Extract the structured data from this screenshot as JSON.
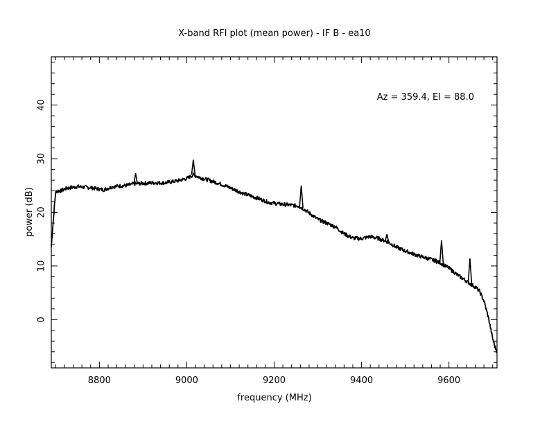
{
  "chart_data": {
    "type": "line",
    "title": "X-band RFI plot (mean power) - IF B - ea10",
    "xlabel": "frequency (MHz)",
    "ylabel": "power (dB)",
    "annotation": "Az = 359.4, El = 88.0",
    "xlim": [
      8690,
      9710
    ],
    "ylim": [
      -9,
      49
    ],
    "x_ticks": [
      8800,
      9000,
      9200,
      9400,
      9600
    ],
    "y_ticks": [
      0,
      10,
      20,
      30,
      40
    ],
    "grid": false,
    "color": "#000000",
    "series": [
      {
        "x": [
          8690,
          8693,
          8697,
          8700,
          8705,
          8712,
          8725,
          8750,
          8780,
          8810,
          8830,
          8860,
          8880,
          8895,
          8920,
          8950,
          8980,
          9000,
          9015,
          9030,
          9050,
          9070,
          9090,
          9110,
          9130,
          9160,
          9190,
          9220,
          9255,
          9270,
          9285,
          9300,
          9320,
          9340,
          9360,
          9380,
          9400,
          9420,
          9440,
          9460,
          9480,
          9500,
          9530,
          9560,
          9580,
          9600,
          9620,
          9640,
          9650,
          9660,
          9670,
          9680,
          9690,
          9695,
          9700,
          9705,
          9710
        ],
        "y": [
          13.5,
          17,
          21,
          23.8,
          24,
          24,
          24.5,
          24.8,
          24.6,
          24.2,
          24.8,
          25,
          25.3,
          25.4,
          25.5,
          25.5,
          25.9,
          26.3,
          27,
          26.5,
          26,
          25.5,
          24.9,
          24.2,
          23.5,
          22.7,
          21.8,
          21.5,
          21.2,
          20.5,
          19.6,
          18.7,
          18,
          17.3,
          16,
          15.2,
          15.1,
          15.5,
          15.1,
          14.5,
          13.5,
          12.8,
          11.9,
          11.2,
          10.6,
          9.6,
          8.3,
          7.2,
          6.6,
          6.1,
          5.3,
          3.5,
          0.5,
          -1.5,
          -3.5,
          -5,
          -6
        ]
      }
    ],
    "spikes": [
      {
        "x": 8883,
        "y": 27.3
      },
      {
        "x": 9015,
        "y": 29.8
      },
      {
        "x": 9262,
        "y": 25
      },
      {
        "x": 9458,
        "y": 15.9
      },
      {
        "x": 9570,
        "y": 11.3
      },
      {
        "x": 9583,
        "y": 14.8
      },
      {
        "x": 9648,
        "y": 11.4
      }
    ]
  }
}
